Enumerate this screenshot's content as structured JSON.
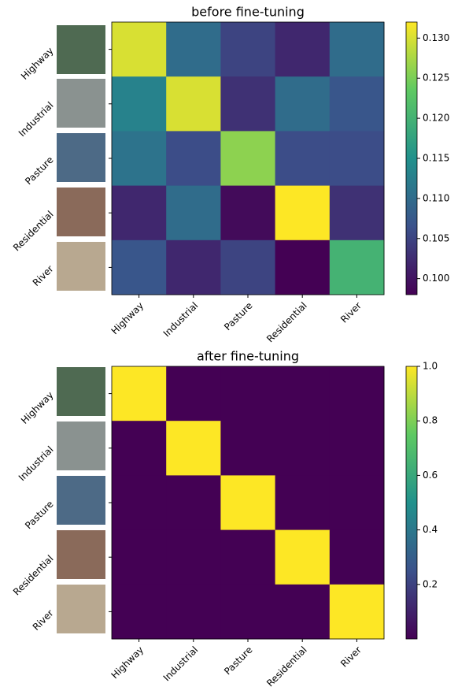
{
  "chart_data": [
    {
      "type": "heatmap",
      "title": "before fine-tuning",
      "categories": [
        "Highway",
        "Industrial",
        "Pasture",
        "Residential",
        "River"
      ],
      "values": [
        [
          0.13,
          0.11,
          0.105,
          0.102,
          0.11
        ],
        [
          0.113,
          0.13,
          0.103,
          0.11,
          0.107
        ],
        [
          0.111,
          0.106,
          0.126,
          0.106,
          0.106
        ],
        [
          0.102,
          0.11,
          0.099,
          0.132,
          0.103
        ],
        [
          0.107,
          0.102,
          0.105,
          0.098,
          0.12
        ]
      ],
      "colormap": "viridis",
      "zlim": [
        0.098,
        0.132
      ],
      "zticks": [
        {
          "value": 0.1,
          "label": "0.100"
        },
        {
          "value": 0.105,
          "label": "0.105"
        },
        {
          "value": 0.11,
          "label": "0.110"
        },
        {
          "value": 0.115,
          "label": "0.115"
        },
        {
          "value": 0.12,
          "label": "0.120"
        },
        {
          "value": 0.125,
          "label": "0.125"
        },
        {
          "value": 0.13,
          "label": "0.130"
        }
      ]
    },
    {
      "type": "heatmap",
      "title": "after fine-tuning",
      "categories": [
        "Highway",
        "Industrial",
        "Pasture",
        "Residential",
        "River"
      ],
      "values": [
        [
          1,
          0,
          0,
          0,
          0
        ],
        [
          0,
          1,
          0,
          0,
          0
        ],
        [
          0,
          0,
          1,
          0,
          0
        ],
        [
          0,
          0,
          0,
          1,
          0
        ],
        [
          0,
          0,
          0,
          0,
          1
        ]
      ],
      "colormap": "viridis",
      "zlim": [
        0,
        1
      ],
      "zticks": [
        0.2,
        0.4,
        0.6,
        0.8,
        {
          "value": 1,
          "label": "1.0"
        }
      ]
    }
  ]
}
